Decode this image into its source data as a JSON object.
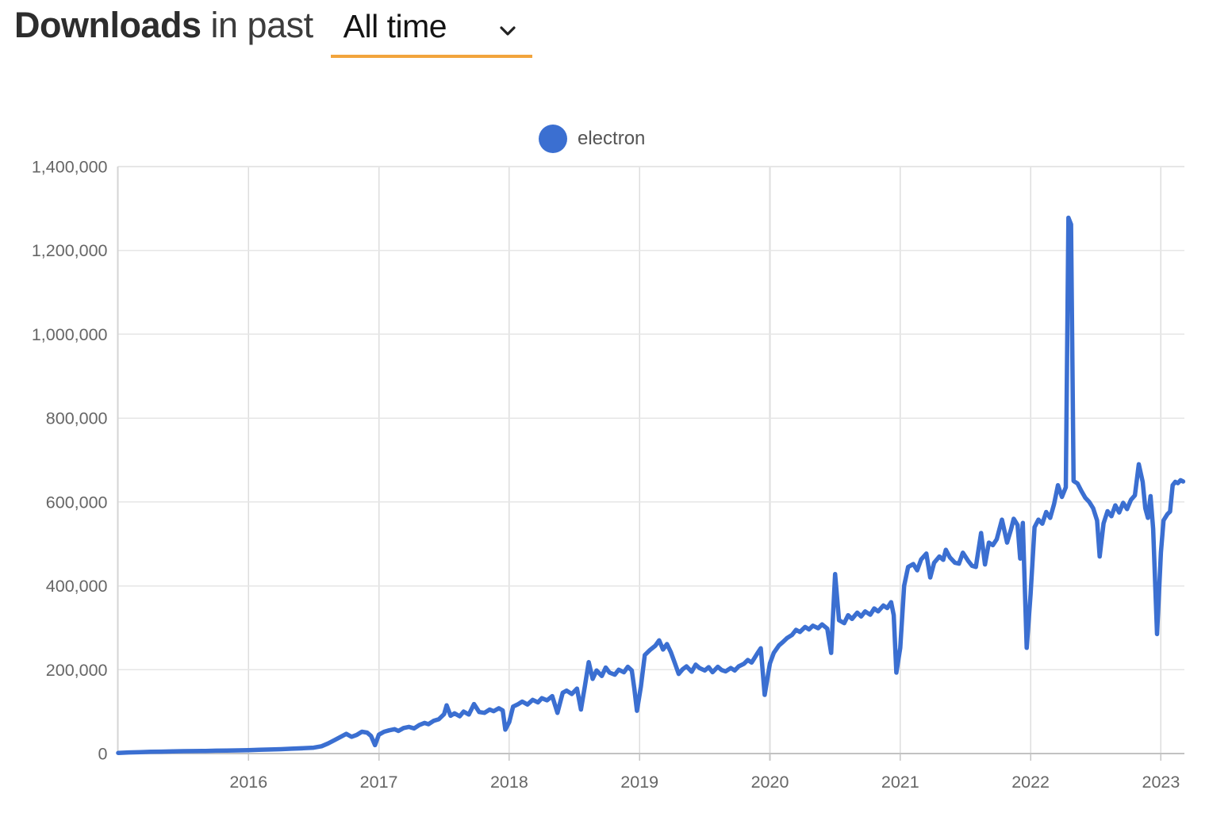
{
  "header": {
    "title_bold": "Downloads",
    "title_rest": "in past",
    "dropdown": {
      "value": "All time"
    },
    "underline_color": "#F2A43C"
  },
  "legend": {
    "label": "electron",
    "marker_color": "#3B6FD1"
  },
  "chart_data": {
    "type": "line",
    "title": "",
    "xlabel": "",
    "ylabel": "",
    "grid": true,
    "legend_position": "top-center",
    "xlim": [
      2014.997,
      2023.18
    ],
    "ylim": [
      0,
      1400000
    ],
    "yticks": {
      "values": [
        0,
        200000,
        400000,
        600000,
        800000,
        1000000,
        1200000,
        1400000
      ],
      "labels": [
        "0",
        "200,000",
        "400,000",
        "600,000",
        "800,000",
        "1,000,000",
        "1,200,000",
        "1,400,000"
      ]
    },
    "xticks": {
      "values": [
        2016,
        2017,
        2018,
        2019,
        2020,
        2021,
        2022,
        2023
      ],
      "labels": [
        "2016",
        "2017",
        "2018",
        "2019",
        "2020",
        "2021",
        "2022",
        "2023"
      ]
    },
    "series": [
      {
        "name": "electron",
        "color": "#3B6FD1",
        "points": [
          [
            2015.0,
            1500
          ],
          [
            2015.08,
            2600
          ],
          [
            2015.17,
            3400
          ],
          [
            2015.25,
            4100
          ],
          [
            2015.33,
            4600
          ],
          [
            2015.42,
            5100
          ],
          [
            2015.5,
            5600
          ],
          [
            2015.58,
            5900
          ],
          [
            2015.67,
            6300
          ],
          [
            2015.75,
            6800
          ],
          [
            2015.83,
            7100
          ],
          [
            2015.92,
            7600
          ],
          [
            2016.0,
            8200
          ],
          [
            2016.08,
            8900
          ],
          [
            2016.17,
            9600
          ],
          [
            2016.25,
            10500
          ],
          [
            2016.33,
            11500
          ],
          [
            2016.42,
            12600
          ],
          [
            2016.5,
            14000
          ],
          [
            2016.56,
            17500
          ],
          [
            2016.61,
            24000
          ],
          [
            2016.66,
            32000
          ],
          [
            2016.7,
            38500
          ],
          [
            2016.75,
            47000
          ],
          [
            2016.79,
            40000
          ],
          [
            2016.83,
            44500
          ],
          [
            2016.87,
            52000
          ],
          [
            2016.91,
            50000
          ],
          [
            2016.94,
            42000
          ],
          [
            2016.97,
            20000
          ],
          [
            2017.0,
            45000
          ],
          [
            2017.04,
            52000
          ],
          [
            2017.08,
            55500
          ],
          [
            2017.12,
            58000
          ],
          [
            2017.15,
            54000
          ],
          [
            2017.19,
            61000
          ],
          [
            2017.23,
            63500
          ],
          [
            2017.27,
            60000
          ],
          [
            2017.31,
            68000
          ],
          [
            2017.35,
            73000
          ],
          [
            2017.38,
            70000
          ],
          [
            2017.42,
            78000
          ],
          [
            2017.46,
            82000
          ],
          [
            2017.5,
            94000
          ],
          [
            2017.52,
            115000
          ],
          [
            2017.55,
            90000
          ],
          [
            2017.58,
            96000
          ],
          [
            2017.62,
            89000
          ],
          [
            2017.65,
            100000
          ],
          [
            2017.69,
            93000
          ],
          [
            2017.73,
            118000
          ],
          [
            2017.77,
            99000
          ],
          [
            2017.81,
            97000
          ],
          [
            2017.85,
            105000
          ],
          [
            2017.88,
            101000
          ],
          [
            2017.92,
            108000
          ],
          [
            2017.95,
            103000
          ],
          [
            2017.97,
            57000
          ],
          [
            2018.0,
            75000
          ],
          [
            2018.03,
            112000
          ],
          [
            2018.07,
            118000
          ],
          [
            2018.1,
            124000
          ],
          [
            2018.14,
            117000
          ],
          [
            2018.18,
            128000
          ],
          [
            2018.22,
            122000
          ],
          [
            2018.25,
            132000
          ],
          [
            2018.29,
            127000
          ],
          [
            2018.33,
            137000
          ],
          [
            2018.37,
            97000
          ],
          [
            2018.41,
            145000
          ],
          [
            2018.44,
            150000
          ],
          [
            2018.48,
            142000
          ],
          [
            2018.52,
            155000
          ],
          [
            2018.55,
            105000
          ],
          [
            2018.58,
            160000
          ],
          [
            2018.61,
            218000
          ],
          [
            2018.64,
            178000
          ],
          [
            2018.67,
            198000
          ],
          [
            2018.71,
            185000
          ],
          [
            2018.74,
            205000
          ],
          [
            2018.77,
            193000
          ],
          [
            2018.81,
            188000
          ],
          [
            2018.84,
            200000
          ],
          [
            2018.88,
            194000
          ],
          [
            2018.91,
            207000
          ],
          [
            2018.94,
            198000
          ],
          [
            2018.96,
            155000
          ],
          [
            2018.98,
            102000
          ],
          [
            2019.01,
            160000
          ],
          [
            2019.04,
            235000
          ],
          [
            2019.08,
            247000
          ],
          [
            2019.12,
            257000
          ],
          [
            2019.15,
            270000
          ],
          [
            2019.18,
            248000
          ],
          [
            2019.21,
            261000
          ],
          [
            2019.24,
            242000
          ],
          [
            2019.27,
            216000
          ],
          [
            2019.3,
            190000
          ],
          [
            2019.33,
            201000
          ],
          [
            2019.36,
            208000
          ],
          [
            2019.4,
            195000
          ],
          [
            2019.43,
            212000
          ],
          [
            2019.46,
            204000
          ],
          [
            2019.5,
            198000
          ],
          [
            2019.53,
            206000
          ],
          [
            2019.56,
            194000
          ],
          [
            2019.6,
            207000
          ],
          [
            2019.63,
            199000
          ],
          [
            2019.66,
            196000
          ],
          [
            2019.7,
            204000
          ],
          [
            2019.73,
            198000
          ],
          [
            2019.76,
            208000
          ],
          [
            2019.8,
            214000
          ],
          [
            2019.83,
            223000
          ],
          [
            2019.86,
            217000
          ],
          [
            2019.9,
            237000
          ],
          [
            2019.93,
            251000
          ],
          [
            2019.96,
            140000
          ],
          [
            2020.0,
            215000
          ],
          [
            2020.03,
            240000
          ],
          [
            2020.07,
            258000
          ],
          [
            2020.1,
            266000
          ],
          [
            2020.13,
            275000
          ],
          [
            2020.17,
            283000
          ],
          [
            2020.2,
            295000
          ],
          [
            2020.23,
            290000
          ],
          [
            2020.27,
            302000
          ],
          [
            2020.3,
            296000
          ],
          [
            2020.33,
            305000
          ],
          [
            2020.37,
            299000
          ],
          [
            2020.4,
            308000
          ],
          [
            2020.44,
            298000
          ],
          [
            2020.47,
            240000
          ],
          [
            2020.5,
            428000
          ],
          [
            2020.53,
            318000
          ],
          [
            2020.57,
            311000
          ],
          [
            2020.6,
            330000
          ],
          [
            2020.63,
            321000
          ],
          [
            2020.67,
            336000
          ],
          [
            2020.7,
            327000
          ],
          [
            2020.73,
            339000
          ],
          [
            2020.77,
            331000
          ],
          [
            2020.8,
            346000
          ],
          [
            2020.83,
            339000
          ],
          [
            2020.87,
            353000
          ],
          [
            2020.9,
            347000
          ],
          [
            2020.93,
            361000
          ],
          [
            2020.95,
            330000
          ],
          [
            2020.97,
            193000
          ],
          [
            2021.0,
            252000
          ],
          [
            2021.03,
            400000
          ],
          [
            2021.06,
            445000
          ],
          [
            2021.1,
            452000
          ],
          [
            2021.13,
            437000
          ],
          [
            2021.16,
            463000
          ],
          [
            2021.2,
            477000
          ],
          [
            2021.23,
            420000
          ],
          [
            2021.26,
            455000
          ],
          [
            2021.3,
            470000
          ],
          [
            2021.33,
            462000
          ],
          [
            2021.35,
            486000
          ],
          [
            2021.38,
            468000
          ],
          [
            2021.42,
            455000
          ],
          [
            2021.45,
            453000
          ],
          [
            2021.48,
            479000
          ],
          [
            2021.52,
            460000
          ],
          [
            2021.55,
            448000
          ],
          [
            2021.58,
            445000
          ],
          [
            2021.62,
            526000
          ],
          [
            2021.65,
            451000
          ],
          [
            2021.68,
            503000
          ],
          [
            2021.71,
            497000
          ],
          [
            2021.74,
            511000
          ],
          [
            2021.78,
            558000
          ],
          [
            2021.82,
            503000
          ],
          [
            2021.85,
            535000
          ],
          [
            2021.87,
            560000
          ],
          [
            2021.9,
            545000
          ],
          [
            2021.92,
            465000
          ],
          [
            2021.94,
            550000
          ],
          [
            2021.97,
            252000
          ],
          [
            2022.0,
            380000
          ],
          [
            2022.03,
            540000
          ],
          [
            2022.06,
            558000
          ],
          [
            2022.09,
            548000
          ],
          [
            2022.12,
            576000
          ],
          [
            2022.15,
            562000
          ],
          [
            2022.18,
            595000
          ],
          [
            2022.21,
            640000
          ],
          [
            2022.24,
            612000
          ],
          [
            2022.27,
            635000
          ],
          [
            2022.29,
            1278000
          ],
          [
            2022.31,
            1262000
          ],
          [
            2022.33,
            650000
          ],
          [
            2022.36,
            644000
          ],
          [
            2022.39,
            626000
          ],
          [
            2022.42,
            610000
          ],
          [
            2022.45,
            600000
          ],
          [
            2022.48,
            585000
          ],
          [
            2022.51,
            556000
          ],
          [
            2022.53,
            470000
          ],
          [
            2022.56,
            549000
          ],
          [
            2022.59,
            578000
          ],
          [
            2022.62,
            566000
          ],
          [
            2022.65,
            592000
          ],
          [
            2022.68,
            575000
          ],
          [
            2022.71,
            598000
          ],
          [
            2022.74,
            583000
          ],
          [
            2022.77,
            605000
          ],
          [
            2022.8,
            616000
          ],
          [
            2022.83,
            690000
          ],
          [
            2022.86,
            648000
          ],
          [
            2022.88,
            585000
          ],
          [
            2022.9,
            562000
          ],
          [
            2022.92,
            614000
          ],
          [
            2022.94,
            536000
          ],
          [
            2022.97,
            285000
          ],
          [
            2023.0,
            480000
          ],
          [
            2023.02,
            556000
          ],
          [
            2023.05,
            571000
          ],
          [
            2023.07,
            577000
          ],
          [
            2023.09,
            640000
          ],
          [
            2023.11,
            648000
          ],
          [
            2023.13,
            645000
          ],
          [
            2023.15,
            652000
          ],
          [
            2023.17,
            649000
          ]
        ]
      }
    ]
  }
}
